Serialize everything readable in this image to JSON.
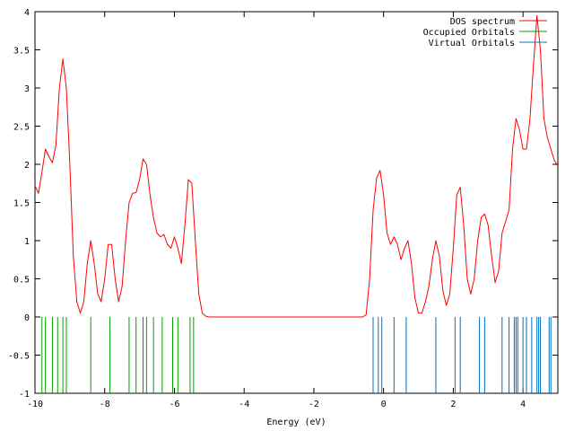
{
  "chart_data": {
    "type": "line",
    "title": "",
    "xlabel": "Energy (eV)",
    "ylabel": "",
    "xlim": [
      -10,
      5
    ],
    "ylim": [
      -1,
      4
    ],
    "x_ticks": [
      {
        "value": -10,
        "label": "-10"
      },
      {
        "value": -8,
        "label": "-8"
      },
      {
        "value": -6,
        "label": "-6"
      },
      {
        "value": -4,
        "label": "-4"
      },
      {
        "value": -2,
        "label": "-2"
      },
      {
        "value": 0,
        "label": "0"
      },
      {
        "value": 2,
        "label": "2"
      },
      {
        "value": 4,
        "label": "4"
      }
    ],
    "y_ticks": [
      {
        "value": -1,
        "label": "-1"
      },
      {
        "value": -0.5,
        "label": "-0.5"
      },
      {
        "value": 0,
        "label": "0"
      },
      {
        "value": 0.5,
        "label": "0.5"
      },
      {
        "value": 1,
        "label": "1"
      },
      {
        "value": 1.5,
        "label": "1.5"
      },
      {
        "value": 2,
        "label": "2"
      },
      {
        "value": 2.5,
        "label": "2.5"
      },
      {
        "value": 3,
        "label": "3"
      },
      {
        "value": 3.5,
        "label": "3.5"
      },
      {
        "value": 4,
        "label": "4"
      }
    ],
    "grid": false,
    "legend_position": "top-right",
    "series": [
      {
        "name": "DOS spectrum",
        "kind": "line",
        "color": "#ff0000",
        "points": [
          [
            -10.0,
            1.72
          ],
          [
            -9.9,
            1.62
          ],
          [
            -9.8,
            1.9
          ],
          [
            -9.7,
            2.2
          ],
          [
            -9.6,
            2.1
          ],
          [
            -9.5,
            2.02
          ],
          [
            -9.4,
            2.25
          ],
          [
            -9.3,
            3.0
          ],
          [
            -9.2,
            3.38
          ],
          [
            -9.1,
            3.0
          ],
          [
            -9.0,
            2.0
          ],
          [
            -8.9,
            0.8
          ],
          [
            -8.8,
            0.2
          ],
          [
            -8.7,
            0.05
          ],
          [
            -8.6,
            0.2
          ],
          [
            -8.5,
            0.7
          ],
          [
            -8.4,
            1.0
          ],
          [
            -8.3,
            0.7
          ],
          [
            -8.2,
            0.3
          ],
          [
            -8.1,
            0.2
          ],
          [
            -8.0,
            0.5
          ],
          [
            -7.9,
            0.95
          ],
          [
            -7.8,
            0.95
          ],
          [
            -7.7,
            0.5
          ],
          [
            -7.6,
            0.2
          ],
          [
            -7.5,
            0.4
          ],
          [
            -7.4,
            1.0
          ],
          [
            -7.3,
            1.5
          ],
          [
            -7.2,
            1.62
          ],
          [
            -7.1,
            1.63
          ],
          [
            -7.0,
            1.8
          ],
          [
            -6.9,
            2.07
          ],
          [
            -6.8,
            2.0
          ],
          [
            -6.7,
            1.6
          ],
          [
            -6.6,
            1.3
          ],
          [
            -6.5,
            1.1
          ],
          [
            -6.4,
            1.05
          ],
          [
            -6.3,
            1.08
          ],
          [
            -6.2,
            0.95
          ],
          [
            -6.1,
            0.9
          ],
          [
            -6.0,
            1.05
          ],
          [
            -5.9,
            0.9
          ],
          [
            -5.8,
            0.7
          ],
          [
            -5.7,
            1.2
          ],
          [
            -5.6,
            1.8
          ],
          [
            -5.5,
            1.75
          ],
          [
            -5.4,
            1.0
          ],
          [
            -5.3,
            0.3
          ],
          [
            -5.2,
            0.05
          ],
          [
            -5.1,
            0.01
          ],
          [
            -5.0,
            0.0
          ],
          [
            -4.0,
            0.0
          ],
          [
            -3.0,
            0.0
          ],
          [
            -2.0,
            0.0
          ],
          [
            -1.0,
            0.0
          ],
          [
            -0.6,
            0.0
          ],
          [
            -0.5,
            0.03
          ],
          [
            -0.4,
            0.5
          ],
          [
            -0.3,
            1.4
          ],
          [
            -0.2,
            1.82
          ],
          [
            -0.1,
            1.92
          ],
          [
            0.0,
            1.6
          ],
          [
            0.1,
            1.1
          ],
          [
            0.2,
            0.95
          ],
          [
            0.3,
            1.05
          ],
          [
            0.4,
            0.95
          ],
          [
            0.5,
            0.75
          ],
          [
            0.6,
            0.9
          ],
          [
            0.7,
            1.0
          ],
          [
            0.8,
            0.7
          ],
          [
            0.9,
            0.25
          ],
          [
            1.0,
            0.05
          ],
          [
            1.1,
            0.05
          ],
          [
            1.2,
            0.2
          ],
          [
            1.3,
            0.4
          ],
          [
            1.4,
            0.75
          ],
          [
            1.5,
            1.0
          ],
          [
            1.6,
            0.8
          ],
          [
            1.7,
            0.35
          ],
          [
            1.8,
            0.15
          ],
          [
            1.9,
            0.3
          ],
          [
            2.0,
            0.9
          ],
          [
            2.1,
            1.6
          ],
          [
            2.2,
            1.7
          ],
          [
            2.3,
            1.2
          ],
          [
            2.4,
            0.5
          ],
          [
            2.5,
            0.3
          ],
          [
            2.6,
            0.5
          ],
          [
            2.7,
            1.0
          ],
          [
            2.8,
            1.3
          ],
          [
            2.9,
            1.35
          ],
          [
            3.0,
            1.2
          ],
          [
            3.1,
            0.8
          ],
          [
            3.2,
            0.45
          ],
          [
            3.3,
            0.6
          ],
          [
            3.4,
            1.1
          ],
          [
            3.5,
            1.25
          ],
          [
            3.6,
            1.4
          ],
          [
            3.7,
            2.2
          ],
          [
            3.8,
            2.6
          ],
          [
            3.9,
            2.45
          ],
          [
            4.0,
            2.2
          ],
          [
            4.1,
            2.2
          ],
          [
            4.2,
            2.6
          ],
          [
            4.3,
            3.3
          ],
          [
            4.4,
            3.95
          ],
          [
            4.5,
            3.5
          ],
          [
            4.6,
            2.6
          ],
          [
            4.7,
            2.35
          ],
          [
            4.8,
            2.2
          ],
          [
            4.9,
            2.05
          ],
          [
            5.0,
            1.98
          ]
        ]
      },
      {
        "name": "Occupied Orbitals",
        "kind": "sticks",
        "color": "#00a000",
        "baseline": 0,
        "height": -1,
        "x": [
          -9.8,
          -9.7,
          -9.5,
          -9.35,
          -9.2,
          -9.1,
          -8.4,
          -7.85,
          -7.3,
          -7.1,
          -6.9,
          -6.8,
          -6.6,
          -6.35,
          -6.05,
          -5.9,
          -5.55,
          -5.45
        ]
      },
      {
        "name": "Virtual Orbitals",
        "kind": "sticks",
        "color": "#0070c0",
        "baseline": 0,
        "height": -1,
        "x": [
          -0.3,
          -0.15,
          -0.05,
          0.3,
          0.65,
          1.5,
          2.05,
          2.2,
          2.75,
          2.9,
          3.4,
          3.6,
          3.75,
          3.8,
          3.85,
          4.0,
          4.1,
          4.25,
          4.4,
          4.45,
          4.5,
          4.75,
          4.8
        ]
      }
    ]
  }
}
